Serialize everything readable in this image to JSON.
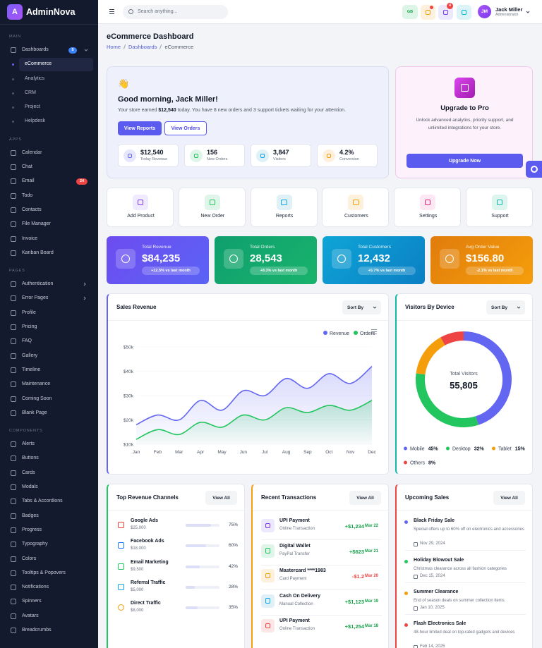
{
  "sidebar": {
    "logo": "A",
    "brand": "AdminNova",
    "sections": [
      {
        "title": "MAIN",
        "items": [
          {
            "label": "Dashboards",
            "badge": "5",
            "badge_color": "#3b82f6",
            "children": [
              "eCommerce",
              "Analytics",
              "CRM",
              "Project",
              "Helpdesk"
            ]
          }
        ]
      },
      {
        "title": "APPS",
        "items": [
          {
            "label": "Calendar"
          },
          {
            "label": "Chat"
          },
          {
            "label": "Email",
            "badge": "24",
            "badge_color": "#ef4444"
          },
          {
            "label": "Todo"
          },
          {
            "label": "Contacts"
          },
          {
            "label": "File Manager"
          },
          {
            "label": "Invoice"
          },
          {
            "label": "Kanban Board"
          }
        ]
      },
      {
        "title": "PAGES",
        "items": [
          {
            "label": "Authentication",
            "submenu": true
          },
          {
            "label": "Error Pages",
            "submenu": true
          },
          {
            "label": "Profile"
          },
          {
            "label": "Pricing"
          },
          {
            "label": "FAQ"
          },
          {
            "label": "Gallery"
          },
          {
            "label": "Timeline"
          },
          {
            "label": "Maintenance"
          },
          {
            "label": "Coming Soon"
          },
          {
            "label": "Blank Page"
          }
        ]
      },
      {
        "title": "COMPONENTS",
        "items": [
          {
            "label": "Alerts"
          },
          {
            "label": "Buttons"
          },
          {
            "label": "Cards"
          },
          {
            "label": "Modals"
          },
          {
            "label": "Tabs & Accordions"
          },
          {
            "label": "Badges"
          },
          {
            "label": "Progress"
          },
          {
            "label": "Typography"
          },
          {
            "label": "Colors"
          },
          {
            "label": "Tooltips & Popovers"
          },
          {
            "label": "Notifications"
          },
          {
            "label": "Spinners"
          },
          {
            "label": "Avatars"
          },
          {
            "label": "Breadcrumbs"
          }
        ]
      }
    ]
  },
  "header": {
    "search_placeholder": "Search anything...",
    "language": "GB",
    "messages_badge": "4",
    "user": {
      "initials": "JM",
      "name": "Jack Miller",
      "role": "Administrator"
    }
  },
  "page": {
    "title": "eCommerce Dashboard",
    "breadcrumbs": [
      "Home",
      "Dashboards",
      "eCommerce"
    ]
  },
  "welcome": {
    "emoji": "👋",
    "title": "Good morning, Jack Miller!",
    "subtitle": [
      "Your store earned ",
      "$12,540",
      " today. You have 8 new orders and 3 support tickets waiting for your attention."
    ],
    "buttons": [
      "View Reports",
      "View Orders"
    ],
    "stats": [
      {
        "value": "$12,540",
        "label": "Today Revenue"
      },
      {
        "value": "156",
        "label": "New Orders"
      },
      {
        "value": "3,847",
        "label": "Visitors"
      },
      {
        "value": "4.2%",
        "label": "Conversion"
      }
    ]
  },
  "upgrade": {
    "title": "Upgrade to Pro",
    "text": "Unlock advanced analytics, priority support, and unlimited integrations for your store.",
    "button": "Upgrade Now"
  },
  "quick_actions": [
    "Add Product",
    "New Order",
    "Reports",
    "Customers",
    "Settings",
    "Support"
  ],
  "stat_cards": [
    {
      "label": "Total Revenue",
      "value": "$84,235",
      "change": "+12.5% vs last month"
    },
    {
      "label": "Total Orders",
      "value": "28,543",
      "change": "+8.3% vs last month"
    },
    {
      "label": "Total Customers",
      "value": "12,432",
      "change": "+5.7% vs last month"
    },
    {
      "label": "Avg Order Value",
      "value": "$156.80",
      "change": "-2.1% vs last month"
    }
  ],
  "sales_chart": {
    "type": "line",
    "title": "Sales Revenue",
    "sort_label": "Sort By",
    "categories": [
      "Jan",
      "Feb",
      "Mar",
      "Apr",
      "May",
      "Jun",
      "Jul",
      "Aug",
      "Sep",
      "Oct",
      "Nov",
      "Dec"
    ],
    "series": [
      {
        "name": "Revenue",
        "color": "#6366f1",
        "values": [
          18000,
          22000,
          20000,
          28000,
          24000,
          32000,
          30000,
          37000,
          33000,
          39000,
          35000,
          42000
        ]
      },
      {
        "name": "Orders",
        "color": "#22c55e",
        "values": [
          12000,
          16000,
          14000,
          19000,
          17000,
          22000,
          20000,
          25000,
          23000,
          26000,
          24000,
          28000
        ]
      }
    ],
    "ylim": [
      10000,
      50000
    ],
    "yticks": [
      {
        "value": 10000,
        "label": "$10k"
      },
      {
        "value": 20000,
        "label": "$20k"
      },
      {
        "value": 30000,
        "label": "$30k"
      },
      {
        "value": 40000,
        "label": "$40k"
      },
      {
        "value": 50000,
        "label": "$50k"
      }
    ]
  },
  "device_chart": {
    "type": "doughnut",
    "title": "Visitors By Device",
    "sort_label": "Sort By",
    "center_label": "Total Visitors",
    "center_value": "55,805",
    "categories": [
      "Mobile",
      "Desktop",
      "Tablet",
      "Others"
    ],
    "colors": [
      "#6366f1",
      "#22c55e",
      "#f59e0b",
      "#ef4444"
    ],
    "values": [
      45,
      32,
      15,
      8
    ],
    "value_labels": [
      "45%",
      "32%",
      "15%",
      "8%"
    ]
  },
  "channels": {
    "title": "Top Revenue Channels",
    "action": "View All",
    "items": [
      {
        "name": "Google Ads",
        "amount": "$25,000",
        "percent": 75,
        "percent_label": "75%"
      },
      {
        "name": "Facebook Ads",
        "amount": "$18,000",
        "percent": 60,
        "percent_label": "60%"
      },
      {
        "name": "Email Marketing",
        "amount": "$9,500",
        "percent": 42,
        "percent_label": "42%"
      },
      {
        "name": "Referral Traffic",
        "amount": "$5,000",
        "percent": 28,
        "percent_label": "28%"
      },
      {
        "name": "Direct Traffic",
        "amount": "$8,000",
        "percent": 35,
        "percent_label": "35%"
      }
    ]
  },
  "transactions": {
    "title": "Recent Transactions",
    "action": "View All",
    "items": [
      {
        "name": "UPI Payment",
        "method": "Online Transaction",
        "amount": "+$1,234",
        "date": "Mar 22"
      },
      {
        "name": "Digital Wallet",
        "method": "PayPal Transfer",
        "amount": "+$623",
        "date": "Mar 21"
      },
      {
        "name": "Mastercard ****1983",
        "method": "Card Payment",
        "amount": "-$1.2",
        "date": "Mar 20"
      },
      {
        "name": "Cash On Delivery",
        "method": "Manual Collection",
        "amount": "+$1,123",
        "date": "Mar 19"
      },
      {
        "name": "UPI Payment",
        "method": "Online Transaction",
        "amount": "+$1,254",
        "date": "Mar 18"
      }
    ]
  },
  "upcoming_sales": {
    "title": "Upcoming Sales",
    "action": "View All",
    "items": [
      {
        "name": "Black Friday Sale",
        "description": "Special offers up to 60% off on electronics and accessories",
        "date": "Nov 29, 2024"
      },
      {
        "name": "Holiday Blowout Sale",
        "description": "Christmas clearance across all fashion categories",
        "date": "Dec 15, 2024"
      },
      {
        "name": "Summer Clearance",
        "description": "End of season deals on summer collection items",
        "date": "Jan 10, 2025"
      },
      {
        "name": "Flash Electronics Sale",
        "description": "48-hour limited deal on top-rated gadgets and devices",
        "date": "Feb 14, 2025"
      }
    ]
  }
}
